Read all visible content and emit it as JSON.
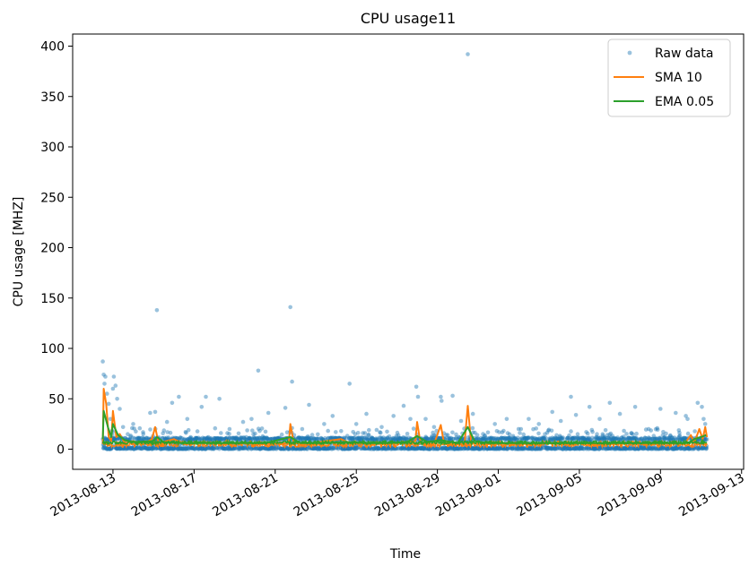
{
  "chart_data": {
    "type": "scatter",
    "title": "CPU usage11",
    "xlabel": "Time",
    "ylabel": "CPU usage [MHZ]",
    "x_axis_type": "date",
    "xlim": [
      "2013-08-11T00:18:00",
      "2013-09-13T02:24:00"
    ],
    "ylim": [
      -20,
      412
    ],
    "x_ticks": [
      "2013-08-13",
      "2013-08-17",
      "2013-08-21",
      "2013-08-25",
      "2013-08-29",
      "2013-09-01",
      "2013-09-05",
      "2013-09-09",
      "2013-09-13"
    ],
    "y_ticks": [
      0,
      50,
      100,
      150,
      200,
      250,
      300,
      350,
      400
    ],
    "grid": false,
    "legend_position": "top-right",
    "colors": {
      "raw": "#1f77b4",
      "sma": "#ff7f0e",
      "ema": "#2ca02c"
    },
    "series": [
      {
        "name": "Raw data",
        "style": "markers",
        "points": [
          [
            "2013-08-12T12:00",
            87
          ],
          [
            "2013-08-12T13:00",
            74
          ],
          [
            "2013-08-12T14:00",
            65
          ],
          [
            "2013-08-12T15:00",
            72
          ],
          [
            "2013-08-12T17:00",
            55
          ],
          [
            "2013-08-12T19:00",
            45
          ],
          [
            "2013-08-12T21:00",
            30
          ],
          [
            "2013-08-13T00:00",
            60
          ],
          [
            "2013-08-13T01:00",
            72
          ],
          [
            "2013-08-13T03:00",
            63
          ],
          [
            "2013-08-13T05:00",
            50
          ],
          [
            "2013-08-13T08:00",
            40
          ],
          [
            "2013-08-13T12:00",
            22
          ],
          [
            "2013-08-14T00:00",
            25
          ],
          [
            "2013-08-14T12:00",
            15
          ],
          [
            "2013-08-14T20:00",
            36
          ],
          [
            "2013-08-15T02:00",
            37
          ],
          [
            "2013-08-15T04:00",
            138
          ],
          [
            "2013-08-15T16:00",
            27
          ],
          [
            "2013-08-15T22:00",
            46
          ],
          [
            "2013-08-16T06:00",
            52
          ],
          [
            "2013-08-16T16:00",
            30
          ],
          [
            "2013-08-16T20:00",
            12
          ],
          [
            "2013-08-17T09:00",
            42
          ],
          [
            "2013-08-17T14:00",
            52
          ],
          [
            "2013-08-18T06:00",
            50
          ],
          [
            "2013-08-18T18:00",
            20
          ],
          [
            "2013-08-19T10:00",
            27
          ],
          [
            "2013-08-19T20:00",
            30
          ],
          [
            "2013-08-20T04:00",
            78
          ],
          [
            "2013-08-20T16:00",
            36
          ],
          [
            "2013-08-21T12:00",
            41
          ],
          [
            "2013-08-21T18:00",
            141
          ],
          [
            "2013-08-21T20:00",
            67
          ],
          [
            "2013-08-22T08:00",
            20
          ],
          [
            "2013-08-22T16:00",
            44
          ],
          [
            "2013-08-23T10:00",
            25
          ],
          [
            "2013-08-23T20:00",
            33
          ],
          [
            "2013-08-24T06:00",
            18
          ],
          [
            "2013-08-24T16:00",
            65
          ],
          [
            "2013-08-25T00:00",
            25
          ],
          [
            "2013-08-25T12:00",
            35
          ],
          [
            "2013-08-26T06:00",
            22
          ],
          [
            "2013-08-26T20:00",
            33
          ],
          [
            "2013-08-27T08:00",
            43
          ],
          [
            "2013-08-27T16:00",
            30
          ],
          [
            "2013-08-27T23:00",
            62
          ],
          [
            "2013-08-28T01:00",
            52
          ],
          [
            "2013-08-28T10:00",
            30
          ],
          [
            "2013-08-28T20:00",
            22
          ],
          [
            "2013-08-29T04:00",
            52
          ],
          [
            "2013-08-29T05:00",
            48
          ],
          [
            "2013-08-29T18:00",
            53
          ],
          [
            "2013-08-30T04:00",
            28
          ],
          [
            "2013-08-30T12:00",
            392
          ],
          [
            "2013-08-30T18:00",
            35
          ],
          [
            "2013-08-31T06:00",
            15
          ],
          [
            "2013-08-31T20:00",
            25
          ],
          [
            "2013-09-01T10:00",
            30
          ],
          [
            "2013-09-02T00:00",
            20
          ],
          [
            "2013-09-02T12:00",
            30
          ],
          [
            "2013-09-03T00:00",
            25
          ],
          [
            "2013-09-03T16:00",
            37
          ],
          [
            "2013-09-04T02:00",
            28
          ],
          [
            "2013-09-04T14:00",
            52
          ],
          [
            "2013-09-04T20:00",
            34
          ],
          [
            "2013-09-05T12:00",
            42
          ],
          [
            "2013-09-06T00:00",
            30
          ],
          [
            "2013-09-06T12:00",
            46
          ],
          [
            "2013-09-07T00:00",
            35
          ],
          [
            "2013-09-07T18:00",
            42
          ],
          [
            "2013-09-08T10:00",
            20
          ],
          [
            "2013-09-09T00:00",
            40
          ],
          [
            "2013-09-09T18:00",
            36
          ],
          [
            "2013-09-10T06:00",
            33
          ],
          [
            "2013-09-10T08:00",
            30
          ],
          [
            "2013-09-10T20:00",
            46
          ],
          [
            "2013-09-11T01:00",
            42
          ],
          [
            "2013-09-11T03:00",
            30
          ],
          [
            "2013-09-11T05:00",
            25
          ]
        ]
      },
      {
        "name": "SMA 10",
        "style": "line",
        "points": [
          [
            "2013-08-12T12:00",
            5
          ],
          [
            "2013-08-12T13:00",
            60
          ],
          [
            "2013-08-12T16:00",
            45
          ],
          [
            "2013-08-12T19:00",
            12
          ],
          [
            "2013-08-12T22:00",
            8
          ],
          [
            "2013-08-13T00:00",
            38
          ],
          [
            "2013-08-13T04:00",
            12
          ],
          [
            "2013-08-13T08:00",
            15
          ],
          [
            "2013-08-13T14:00",
            6
          ],
          [
            "2013-08-14T00:00",
            8
          ],
          [
            "2013-08-14T12:00",
            5
          ],
          [
            "2013-08-14T22:00",
            10
          ],
          [
            "2013-08-15T02:00",
            22
          ],
          [
            "2013-08-15T06:00",
            6
          ],
          [
            "2013-08-16T00:00",
            10
          ],
          [
            "2013-08-16T12:00",
            5
          ],
          [
            "2013-08-17T12:00",
            7
          ],
          [
            "2013-08-18T12:00",
            5
          ],
          [
            "2013-08-19T12:00",
            6
          ],
          [
            "2013-08-20T12:00",
            5
          ],
          [
            "2013-08-21T16:00",
            6
          ],
          [
            "2013-08-21T18:00",
            25
          ],
          [
            "2013-08-21T22:00",
            6
          ],
          [
            "2013-08-22T12:00",
            5
          ],
          [
            "2013-08-23T12:00",
            8
          ],
          [
            "2013-08-24T06:00",
            10
          ],
          [
            "2013-08-24T18:00",
            5
          ],
          [
            "2013-08-25T12:00",
            6
          ],
          [
            "2013-08-26T12:00",
            5
          ],
          [
            "2013-08-27T12:00",
            7
          ],
          [
            "2013-08-27T22:00",
            8
          ],
          [
            "2013-08-28T00:00",
            27
          ],
          [
            "2013-08-28T04:00",
            6
          ],
          [
            "2013-08-28T20:00",
            5
          ],
          [
            "2013-08-29T04:00",
            24
          ],
          [
            "2013-08-29T08:00",
            5
          ],
          [
            "2013-08-30T08:00",
            5
          ],
          [
            "2013-08-30T12:00",
            43
          ],
          [
            "2013-08-30T16:00",
            6
          ],
          [
            "2013-08-31T12:00",
            5
          ],
          [
            "2013-09-01T12:00",
            6
          ],
          [
            "2013-09-02T12:00",
            5
          ],
          [
            "2013-09-03T12:00",
            6
          ],
          [
            "2013-09-04T12:00",
            5
          ],
          [
            "2013-09-05T12:00",
            6
          ],
          [
            "2013-09-06T12:00",
            5
          ],
          [
            "2013-09-07T12:00",
            6
          ],
          [
            "2013-09-08T12:00",
            5
          ],
          [
            "2013-09-09T12:00",
            6
          ],
          [
            "2013-09-10T04:00",
            5
          ],
          [
            "2013-09-10T12:00",
            14
          ],
          [
            "2013-09-10T16:00",
            6
          ],
          [
            "2013-09-10T22:00",
            20
          ],
          [
            "2013-09-11T02:00",
            10
          ],
          [
            "2013-09-11T05:00",
            22
          ],
          [
            "2013-09-11T07:00",
            12
          ]
        ]
      },
      {
        "name": "EMA 0.05",
        "style": "line",
        "points": [
          [
            "2013-08-12T12:00",
            10
          ],
          [
            "2013-08-12T13:00",
            38
          ],
          [
            "2013-08-12T18:00",
            22
          ],
          [
            "2013-08-12T22:00",
            12
          ],
          [
            "2013-08-13T00:00",
            25
          ],
          [
            "2013-08-13T06:00",
            14
          ],
          [
            "2013-08-13T14:00",
            9
          ],
          [
            "2013-08-14T00:00",
            7
          ],
          [
            "2013-08-15T00:00",
            8
          ],
          [
            "2013-08-15T04:00",
            12
          ],
          [
            "2013-08-15T12:00",
            7
          ],
          [
            "2013-08-16T12:00",
            6
          ],
          [
            "2013-08-17T12:00",
            6
          ],
          [
            "2013-08-18T12:00",
            6
          ],
          [
            "2013-08-19T12:00",
            6
          ],
          [
            "2013-08-20T12:00",
            6
          ],
          [
            "2013-08-21T18:00",
            12
          ],
          [
            "2013-08-22T06:00",
            6
          ],
          [
            "2013-08-23T12:00",
            6
          ],
          [
            "2013-08-24T12:00",
            7
          ],
          [
            "2013-08-25T12:00",
            6
          ],
          [
            "2013-08-26T12:00",
            6
          ],
          [
            "2013-08-27T12:00",
            7
          ],
          [
            "2013-08-28T00:00",
            13
          ],
          [
            "2013-08-28T12:00",
            7
          ],
          [
            "2013-08-29T04:00",
            9
          ],
          [
            "2013-08-30T00:00",
            6
          ],
          [
            "2013-08-30T12:00",
            22
          ],
          [
            "2013-08-30T20:00",
            8
          ],
          [
            "2013-08-31T12:00",
            6
          ],
          [
            "2013-09-01T12:00",
            6
          ],
          [
            "2013-09-03T12:00",
            6
          ],
          [
            "2013-09-05T12:00",
            6
          ],
          [
            "2013-09-07T12:00",
            6
          ],
          [
            "2013-09-09T12:00",
            6
          ],
          [
            "2013-09-10T08:00",
            6
          ],
          [
            "2013-09-10T16:00",
            10
          ],
          [
            "2013-09-11T00:00",
            12
          ],
          [
            "2013-09-11T06:00",
            14
          ]
        ]
      }
    ]
  }
}
